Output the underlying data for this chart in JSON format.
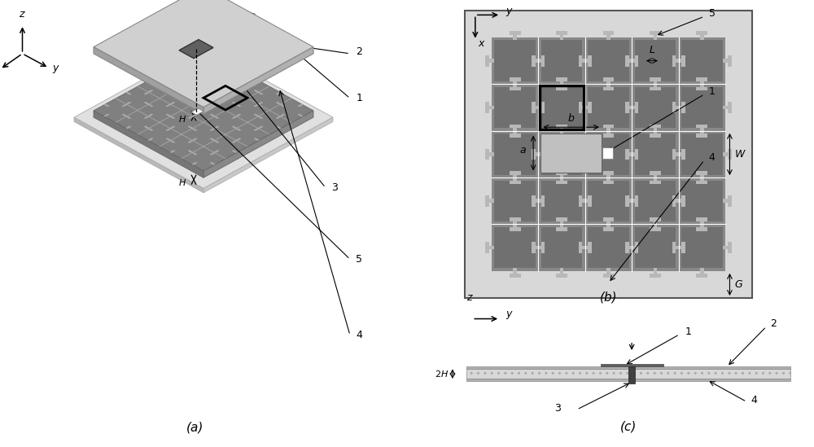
{
  "bg_color": "#ffffff",
  "panel_a_label": "(a)",
  "panel_b_label": "(b)",
  "panel_c_label": "(c)",
  "colors": {
    "light_gray": "#d0d0d0",
    "med_gray": "#b0b0b0",
    "dark_gray": "#808080",
    "amc_surface": "#808080",
    "amc_cell": "#787878",
    "substrate_light": "#c8c8c8",
    "patch_dark": "#606060",
    "ground": "#c0c0c0",
    "white": "#ffffff",
    "black": "#000000",
    "border_outer": "#e0e0e0",
    "stub_color": "#b0b0b0"
  }
}
